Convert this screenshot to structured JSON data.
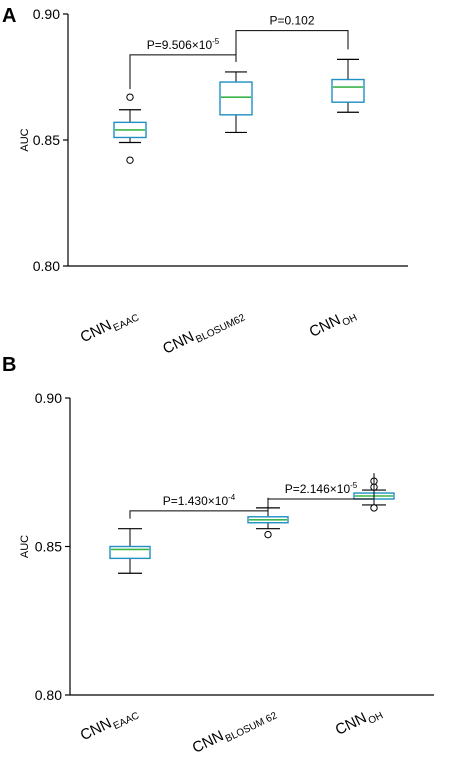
{
  "chart_data": [
    {
      "panel": "A",
      "type": "box",
      "ylabel": "AUC",
      "ylim": [
        0.8,
        0.9
      ],
      "yticks": [
        "0.80",
        "0.85",
        "0.90"
      ],
      "categories": [
        {
          "main": "CNN",
          "sub": "EAAC"
        },
        {
          "main": "CNN",
          "sub": "BLOSUM62"
        },
        {
          "main": "CNN",
          "sub": "OH"
        }
      ],
      "boxes": [
        {
          "whisker_low": 0.849,
          "q1": 0.851,
          "median": 0.854,
          "q3": 0.857,
          "whisker_high": 0.862,
          "outliers": [
            0.842,
            0.867
          ]
        },
        {
          "whisker_low": 0.853,
          "q1": 0.86,
          "median": 0.867,
          "q3": 0.873,
          "whisker_high": 0.877,
          "outliers": []
        },
        {
          "whisker_low": 0.861,
          "q1": 0.865,
          "median": 0.871,
          "q3": 0.874,
          "whisker_high": 0.882,
          "outliers": []
        }
      ],
      "comparisons": [
        {
          "from": 0,
          "to": 1,
          "label": "P=9.506×10",
          "exp": "-5",
          "level": 0.8838
        },
        {
          "from": 1,
          "to": 2,
          "label": "P=0.102",
          "exp": "",
          "level": 0.8934
        }
      ],
      "colors": {
        "box": "#1f8fc4",
        "median": "#3bb54a"
      }
    },
    {
      "panel": "B",
      "type": "box",
      "ylabel": "AUC",
      "ylim": [
        0.8,
        0.9
      ],
      "yticks": [
        "0.80",
        "0.85",
        "0.90"
      ],
      "categories": [
        {
          "main": "CNN",
          "sub": "EAAC"
        },
        {
          "main": "CNN",
          "sub": "BLOSUM 62"
        },
        {
          "main": "CNN",
          "sub": "OH"
        }
      ],
      "boxes": [
        {
          "whisker_low": 0.841,
          "q1": 0.846,
          "median": 0.849,
          "q3": 0.85,
          "whisker_high": 0.856,
          "outliers": []
        },
        {
          "whisker_low": 0.856,
          "q1": 0.858,
          "median": 0.859,
          "q3": 0.86,
          "whisker_high": 0.863,
          "outliers": [
            0.854
          ]
        },
        {
          "whisker_low": 0.864,
          "q1": 0.866,
          "median": 0.867,
          "q3": 0.868,
          "whisker_high": 0.869,
          "outliers": [
            0.863,
            0.87,
            0.872
          ]
        }
      ],
      "comparisons": [
        {
          "from": 0,
          "to": 1,
          "label": "P=1.430×10",
          "exp": "-4",
          "level": 0.862
        },
        {
          "from": 1,
          "to": 2,
          "label": "P=2.146×10",
          "exp": "-5",
          "level": 0.866
        }
      ],
      "colors": {
        "box": "#1f8fc4",
        "median": "#3bb54a"
      }
    }
  ]
}
